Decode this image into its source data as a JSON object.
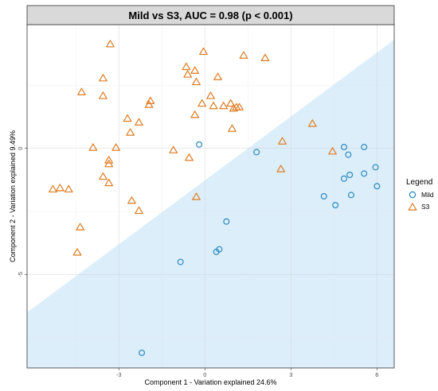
{
  "chart_data": {
    "type": "scatter",
    "title": "Mild vs S3, AUC = 0.98 (p < 0.001)",
    "xlabel": "Component 1 - Variation explained 24.6%",
    "ylabel": "Component 2 - Variation explained 9.49%",
    "xlim": [
      -6.2,
      6.6
    ],
    "ylim": [
      -8.7,
      4.9
    ],
    "x_ticks": [
      -3,
      0,
      3,
      6
    ],
    "y_ticks": [
      -5,
      0
    ],
    "grid": true,
    "legend": {
      "title": "Legend",
      "placement": "right"
    },
    "decision_region": {
      "label_series": "Mild",
      "boundary_from": [
        -6.2,
        -6.5
      ],
      "boundary_to": [
        6.6,
        4.3
      ],
      "color": "#dceefa"
    },
    "series": [
      {
        "name": "Mild",
        "marker": "circle",
        "color": "#2a8ac0",
        "points": [
          [
            -0.2,
            0.15
          ],
          [
            1.8,
            -0.15
          ],
          [
            4.85,
            0.05
          ],
          [
            5.0,
            -0.25
          ],
          [
            5.55,
            0.05
          ],
          [
            5.95,
            -0.75
          ],
          [
            6.0,
            -1.5
          ],
          [
            5.55,
            -1.0
          ],
          [
            5.05,
            -1.05
          ],
          [
            4.85,
            -1.2
          ],
          [
            4.15,
            -1.9
          ],
          [
            5.1,
            -1.85
          ],
          [
            4.55,
            -2.25
          ],
          [
            0.75,
            -2.9
          ],
          [
            0.5,
            -4.0
          ],
          [
            0.4,
            -4.1
          ],
          [
            -0.85,
            -4.5
          ],
          [
            -2.2,
            -8.1
          ]
        ]
      },
      {
        "name": "S3",
        "marker": "triangle",
        "color": "#e07b21",
        "points": [
          [
            -3.3,
            4.15
          ],
          [
            -0.05,
            3.85
          ],
          [
            1.35,
            3.7
          ],
          [
            2.1,
            3.6
          ],
          [
            -0.65,
            3.25
          ],
          [
            -0.35,
            3.1
          ],
          [
            -0.6,
            2.95
          ],
          [
            0.45,
            2.85
          ],
          [
            -0.3,
            2.65
          ],
          [
            -3.55,
            2.8
          ],
          [
            -4.3,
            2.25
          ],
          [
            0.2,
            2.1
          ],
          [
            -3.55,
            2.1
          ],
          [
            -1.9,
            1.9
          ],
          [
            -1.95,
            1.75
          ],
          [
            -0.1,
            1.8
          ],
          [
            0.9,
            1.8
          ],
          [
            0.3,
            1.7
          ],
          [
            0.65,
            1.7
          ],
          [
            1.1,
            1.65
          ],
          [
            1.2,
            1.65
          ],
          [
            1.0,
            1.6
          ],
          [
            -0.35,
            1.35
          ],
          [
            -2.7,
            1.2
          ],
          [
            -2.3,
            1.05
          ],
          [
            3.75,
            1.0
          ],
          [
            0.95,
            0.8
          ],
          [
            -2.6,
            0.65
          ],
          [
            2.7,
            0.3
          ],
          [
            -3.9,
            0.05
          ],
          [
            -3.1,
            0.05
          ],
          [
            -1.1,
            -0.05
          ],
          [
            4.45,
            -0.1
          ],
          [
            -3.35,
            -0.45
          ],
          [
            -0.55,
            -0.35
          ],
          [
            -3.35,
            -0.6
          ],
          [
            2.65,
            -0.8
          ],
          [
            -3.55,
            -1.1
          ],
          [
            -3.35,
            -1.35
          ],
          [
            -5.3,
            -1.6
          ],
          [
            -5.05,
            -1.55
          ],
          [
            -4.75,
            -1.6
          ],
          [
            -0.3,
            -1.9
          ],
          [
            -2.55,
            -2.05
          ],
          [
            -2.3,
            -2.45
          ],
          [
            -4.35,
            -3.1
          ],
          [
            -4.45,
            -4.1
          ]
        ]
      }
    ]
  }
}
